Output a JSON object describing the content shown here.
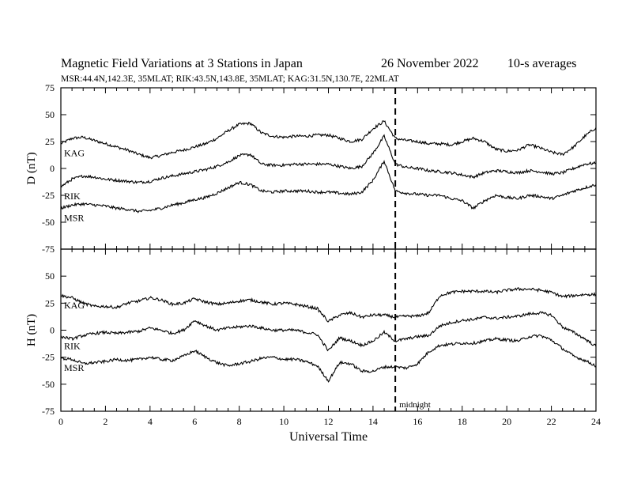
{
  "header": {
    "title": "Magnetic Field Variations at 3 Stations in Japan",
    "date": "26 November 2022",
    "averaging": "10-s averages",
    "stations_line": "MSR:44.4N,142.3E, 35MLAT;  RIK:43.5N,143.8E, 35MLAT;  KAG:31.5N,130.7E, 22MLAT"
  },
  "chart_data": [
    {
      "type": "line",
      "panel": "top",
      "ylabel": "D (nT)",
      "ylim": [
        -75,
        75
      ],
      "yticks": [
        -75,
        -50,
        -25,
        0,
        25,
        50,
        75
      ],
      "xlim": [
        0,
        24
      ],
      "grid": false,
      "series": [
        {
          "name": "KAG",
          "x": [
            0,
            0.5,
            1,
            1.5,
            2,
            2.5,
            3,
            3.5,
            4,
            4.5,
            5,
            5.5,
            6,
            6.5,
            7,
            7.5,
            8,
            8.5,
            9,
            9.5,
            10,
            10.5,
            11,
            11.5,
            12,
            12.5,
            13,
            13.5,
            14,
            14.5,
            15,
            15.5,
            16,
            16.5,
            17,
            17.5,
            18,
            18.5,
            19,
            19.5,
            20,
            20.5,
            21,
            21.5,
            22,
            22.5,
            23,
            23.5,
            24
          ],
          "values": [
            23,
            28,
            29,
            26,
            23,
            20,
            17,
            13,
            10,
            12,
            15,
            17,
            20,
            23,
            28,
            35,
            41,
            42,
            33,
            30,
            29,
            30,
            30,
            31,
            31,
            28,
            25,
            27,
            37,
            44,
            28,
            26,
            25,
            23,
            23,
            22,
            25,
            28,
            25,
            18,
            16,
            17,
            22,
            19,
            15,
            13,
            20,
            30,
            38
          ]
        },
        {
          "name": "RIK",
          "x": [
            0,
            0.5,
            1,
            1.5,
            2,
            2.5,
            3,
            3.5,
            4,
            4.5,
            5,
            5.5,
            6,
            6.5,
            7,
            7.5,
            8,
            8.5,
            9,
            9.5,
            10,
            10.5,
            11,
            11.5,
            12,
            12.5,
            13,
            13.5,
            14,
            14.5,
            15,
            15.5,
            16,
            16.5,
            17,
            17.5,
            18,
            18.5,
            19,
            19.5,
            20,
            20.5,
            21,
            21.5,
            22,
            22.5,
            23,
            23.5,
            24
          ],
          "values": [
            -17,
            -10,
            -7,
            -8,
            -10,
            -11,
            -12,
            -13,
            -12,
            -9,
            -7,
            -5,
            -3,
            -1,
            2,
            6,
            12,
            13,
            4,
            3,
            3,
            4,
            4,
            4,
            4,
            2,
            0,
            2,
            14,
            30,
            4,
            1,
            0,
            -2,
            -3,
            -4,
            -6,
            -8,
            -4,
            -2,
            -3,
            -4,
            -2,
            -3,
            -5,
            -4,
            0,
            4,
            5
          ]
        },
        {
          "name": "MSR",
          "x": [
            0,
            0.5,
            1,
            1.5,
            2,
            2.5,
            3,
            3.5,
            4,
            4.5,
            5,
            5.5,
            6,
            6.5,
            7,
            7.5,
            8,
            8.5,
            9,
            9.5,
            10,
            10.5,
            11,
            11.5,
            12,
            12.5,
            13,
            13.5,
            14,
            14.5,
            15,
            15.5,
            16,
            16.5,
            17,
            17.5,
            18,
            18.5,
            19,
            19.5,
            20,
            20.5,
            21,
            21.5,
            22,
            22.5,
            23,
            23.5,
            24
          ],
          "values": [
            -37,
            -34,
            -33,
            -34,
            -35,
            -37,
            -38,
            -40,
            -39,
            -37,
            -34,
            -32,
            -29,
            -27,
            -23,
            -18,
            -13,
            -15,
            -21,
            -22,
            -21,
            -21,
            -21,
            -22,
            -22,
            -23,
            -24,
            -22,
            -11,
            7,
            -21,
            -23,
            -24,
            -25,
            -25,
            -28,
            -30,
            -37,
            -30,
            -25,
            -27,
            -28,
            -25,
            -26,
            -28,
            -25,
            -21,
            -18,
            -15
          ]
        }
      ]
    },
    {
      "type": "line",
      "panel": "bottom",
      "ylabel": "H (nT)",
      "xlabel": "Universal Time",
      "ylim": [
        -75,
        75
      ],
      "yticks": [
        -75,
        -50,
        -25,
        0,
        25,
        50
      ],
      "xlim": [
        0,
        24
      ],
      "xticks": [
        0,
        2,
        4,
        6,
        8,
        10,
        12,
        14,
        16,
        18,
        20,
        22,
        24
      ],
      "grid": false,
      "annotations": [
        {
          "x": 15,
          "text": "midnight",
          "style": "dashed vertical line"
        }
      ],
      "series": [
        {
          "name": "KAG",
          "x": [
            0,
            0.5,
            1,
            1.5,
            2,
            2.5,
            3,
            3.5,
            4,
            4.5,
            5,
            5.5,
            6,
            6.5,
            7,
            7.5,
            8,
            8.5,
            9,
            9.5,
            10,
            10.5,
            11,
            11.5,
            12,
            12.5,
            13,
            13.5,
            14,
            14.5,
            15,
            15.5,
            16,
            16.5,
            17,
            17.5,
            18,
            18.5,
            19,
            19.5,
            20,
            20.5,
            21,
            21.5,
            22,
            22.5,
            23,
            23.5,
            24
          ],
          "values": [
            32,
            30,
            25,
            22,
            22,
            21,
            25,
            27,
            30,
            28,
            24,
            25,
            29,
            26,
            24,
            25,
            27,
            28,
            26,
            24,
            25,
            24,
            22,
            20,
            8,
            14,
            16,
            12,
            14,
            14,
            12,
            13,
            13,
            16,
            32,
            35,
            36,
            36,
            36,
            35,
            37,
            38,
            38,
            37,
            35,
            31,
            32,
            33,
            33
          ]
        },
        {
          "name": "RIK",
          "x": [
            0,
            0.5,
            1,
            1.5,
            2,
            2.5,
            3,
            3.5,
            4,
            4.5,
            5,
            5.5,
            6,
            6.5,
            7,
            7.5,
            8,
            8.5,
            9,
            9.5,
            10,
            10.5,
            11,
            11.5,
            12,
            12.5,
            13,
            13.5,
            14,
            14.5,
            15,
            15.5,
            16,
            16.5,
            17,
            17.5,
            18,
            18.5,
            19,
            19.5,
            20,
            20.5,
            21,
            21.5,
            22,
            22.5,
            23,
            23.5,
            24
          ],
          "values": [
            -6,
            -8,
            -5,
            -3,
            -2,
            -3,
            -2,
            -1,
            2,
            0,
            -3,
            0,
            9,
            4,
            0,
            2,
            3,
            4,
            2,
            0,
            0,
            0,
            -2,
            -4,
            -19,
            -7,
            -10,
            -14,
            -10,
            -2,
            -10,
            -8,
            -6,
            -5,
            4,
            7,
            9,
            10,
            12,
            11,
            12,
            13,
            15,
            16,
            14,
            3,
            -2,
            -8,
            -15
          ]
        },
        {
          "name": "MSR",
          "x": [
            0,
            0.5,
            1,
            1.5,
            2,
            2.5,
            3,
            3.5,
            4,
            4.5,
            5,
            5.5,
            6,
            6.5,
            7,
            7.5,
            8,
            8.5,
            9,
            9.5,
            10,
            10.5,
            11,
            11.5,
            12,
            12.5,
            13,
            13.5,
            14,
            14.5,
            15,
            15.5,
            16,
            16.5,
            17,
            17.5,
            18,
            18.5,
            19,
            19.5,
            20,
            20.5,
            21,
            21.5,
            22,
            22.5,
            23,
            23.5,
            24
          ],
          "values": [
            -26,
            -27,
            -31,
            -30,
            -29,
            -27,
            -28,
            -27,
            -25,
            -27,
            -28,
            -24,
            -19,
            -25,
            -30,
            -33,
            -31,
            -29,
            -26,
            -25,
            -27,
            -27,
            -29,
            -33,
            -47,
            -30,
            -31,
            -38,
            -38,
            -34,
            -34,
            -35,
            -31,
            -20,
            -14,
            -13,
            -12,
            -12,
            -10,
            -8,
            -9,
            -10,
            -6,
            -5,
            -9,
            -17,
            -24,
            -28,
            -33
          ]
        }
      ]
    }
  ]
}
